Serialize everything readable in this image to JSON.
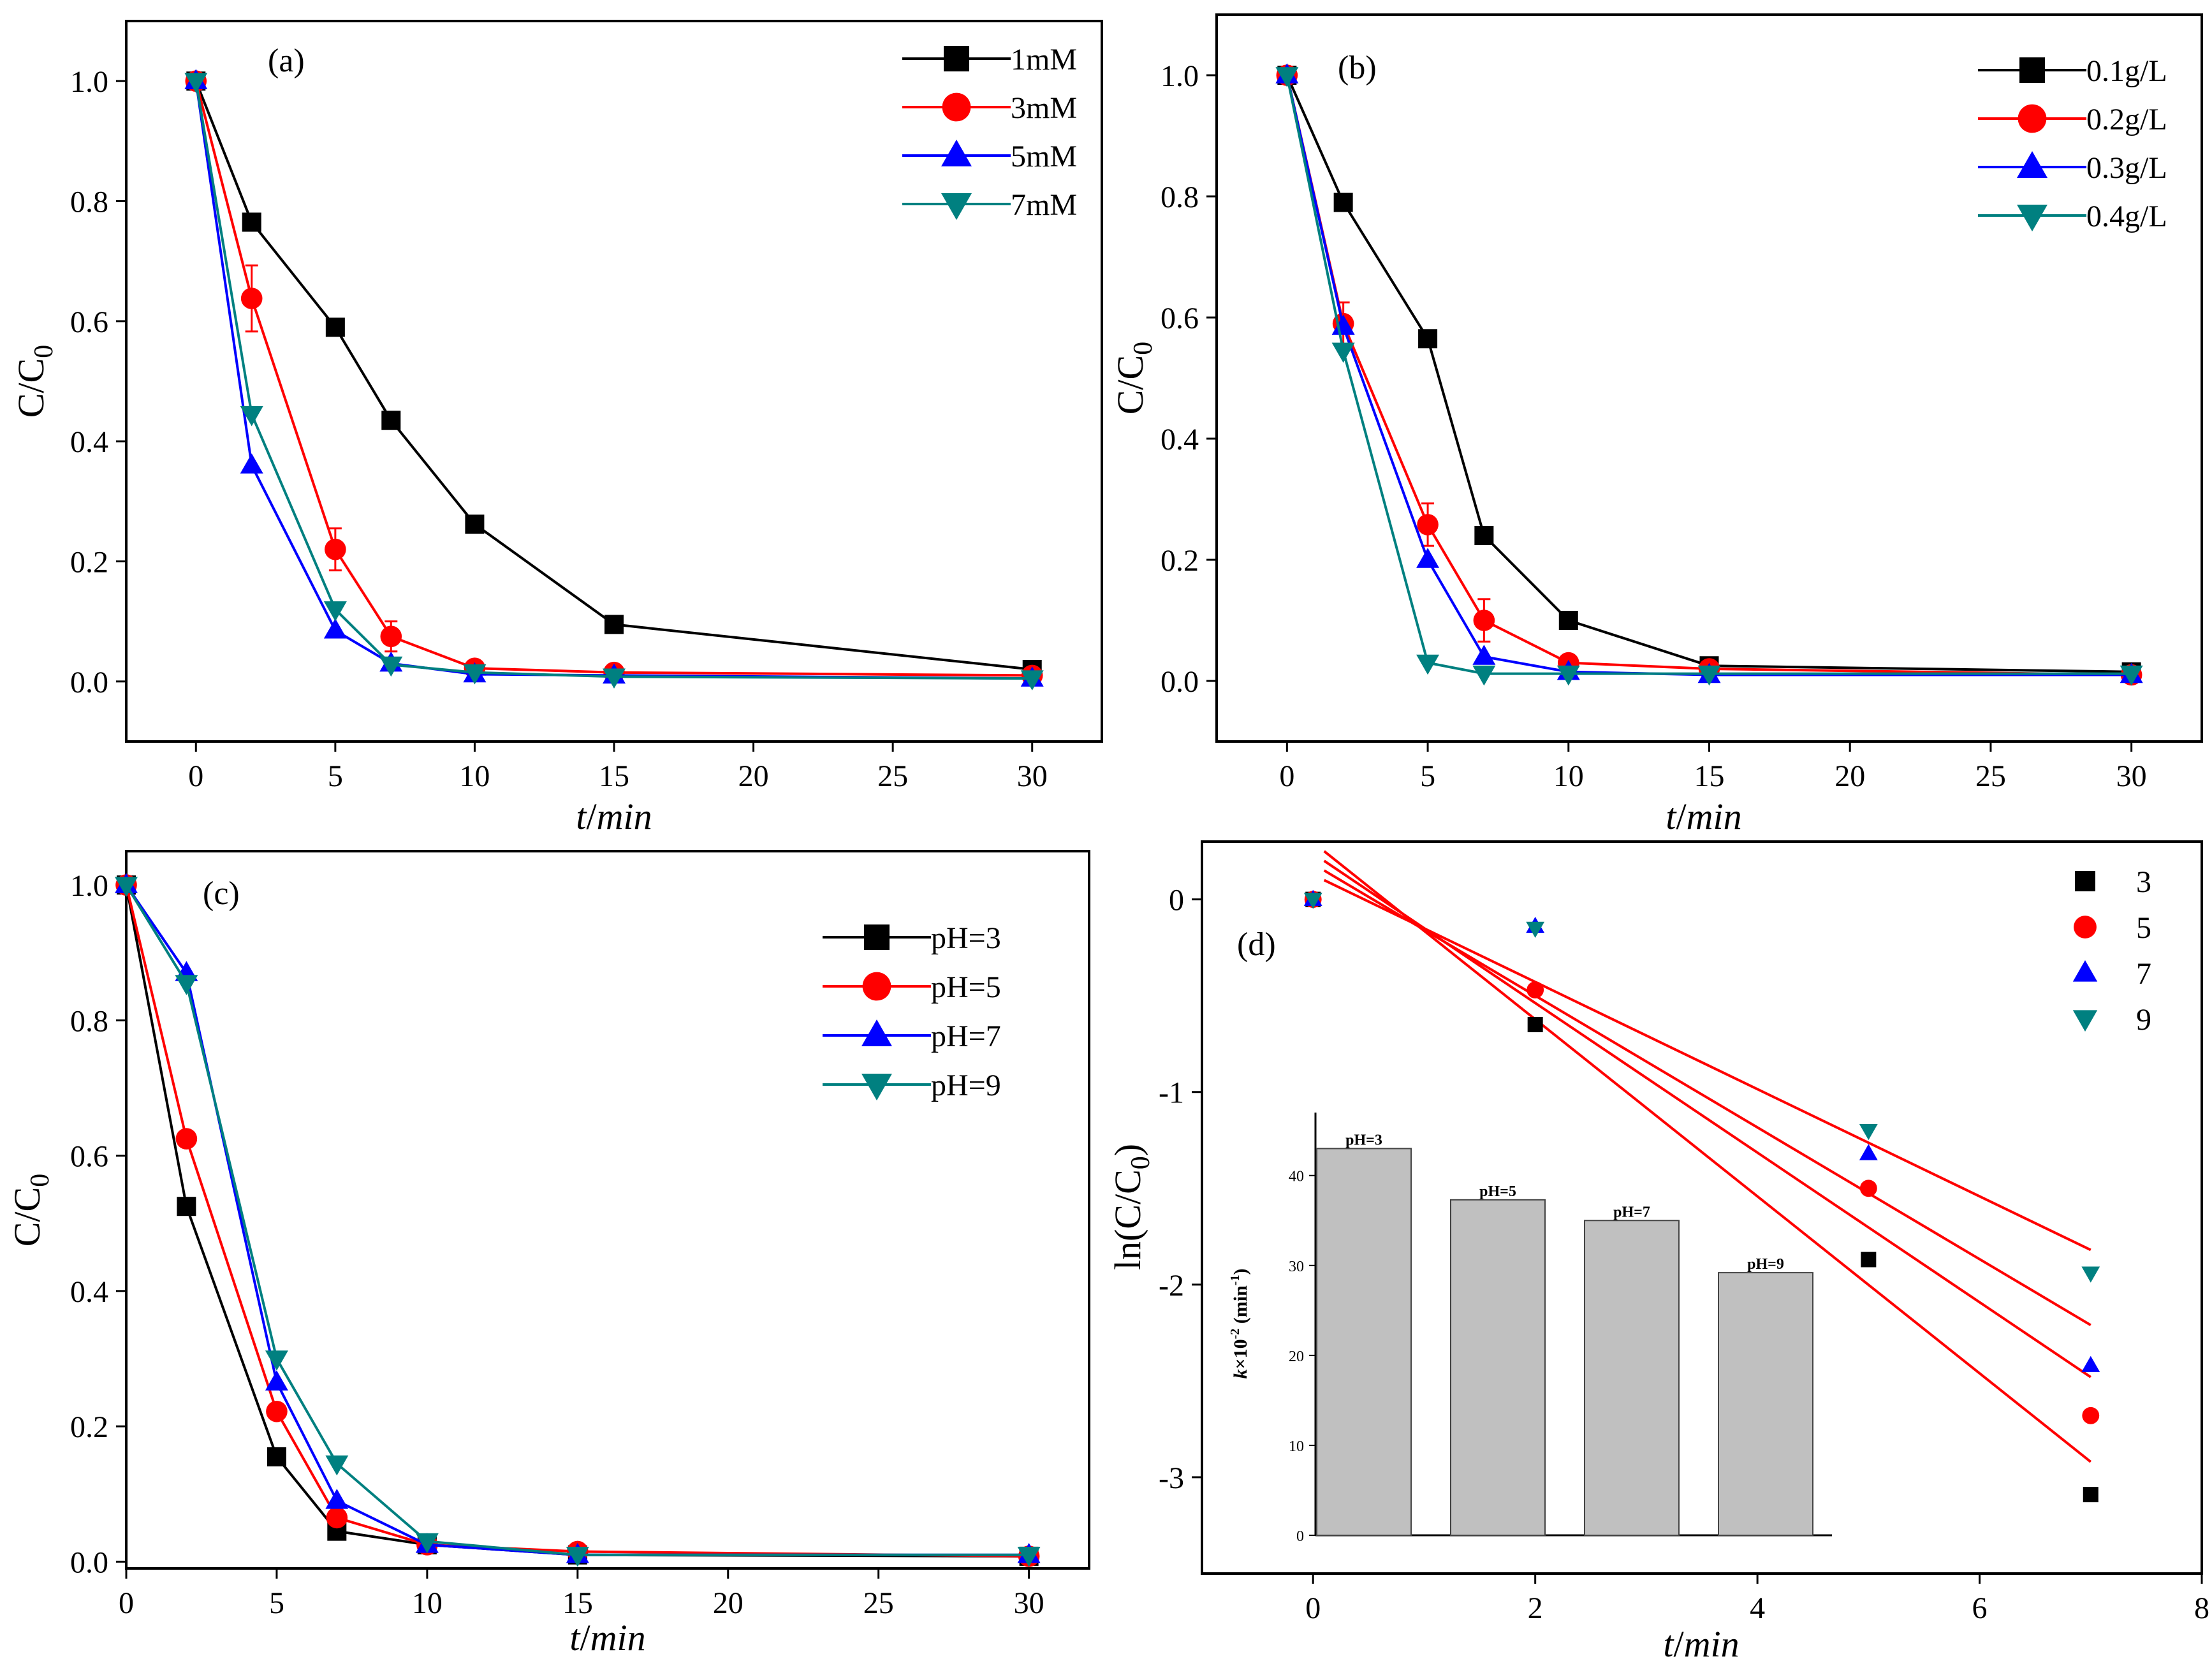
{
  "colors": {
    "black": "#000000",
    "red": "#ff0000",
    "blue": "#0000ff",
    "teal": "#008080",
    "bar": "#c0c0c0"
  },
  "chart_data": [
    {
      "panel": "(a)",
      "type": "line",
      "xlabel_t": "t",
      "xlabel_sep": "/",
      "xlabel_min": "min",
      "ylabel_base": "C/C",
      "ylabel_sub": "0",
      "xlim": [
        -2.5,
        32.5
      ],
      "ylim": [
        -0.1,
        1.1
      ],
      "xticks": [
        0,
        5,
        10,
        15,
        20,
        25,
        30
      ],
      "xtick_labels": [
        "0",
        "5",
        "10",
        "15",
        "20",
        "25",
        "30"
      ],
      "yticks": [
        0.0,
        0.2,
        0.4,
        0.6,
        0.8,
        1.0
      ],
      "ytick_labels": [
        "0.0",
        "0.2",
        "0.4",
        "0.6",
        "0.8",
        "1.0"
      ],
      "x": [
        0,
        2,
        5,
        7,
        10,
        15,
        30
      ],
      "series": [
        {
          "name": "1mM",
          "color": "#000000",
          "marker": "square",
          "values": [
            1.0,
            0.765,
            0.59,
            0.435,
            0.262,
            0.095,
            0.02
          ]
        },
        {
          "name": "3mM",
          "color": "#ff0000",
          "marker": "circle",
          "values": [
            1.0,
            0.638,
            0.22,
            0.075,
            0.022,
            0.015,
            0.01
          ],
          "errors": [
            0,
            0.055,
            0.035,
            0.025,
            0,
            0,
            0
          ]
        },
        {
          "name": "5mM",
          "color": "#0000ff",
          "marker": "triangle-up",
          "values": [
            1.0,
            0.36,
            0.085,
            0.03,
            0.012,
            0.01,
            0.005
          ]
        },
        {
          "name": "7mM",
          "color": "#008080",
          "marker": "triangle-down",
          "values": [
            1.0,
            0.445,
            0.12,
            0.028,
            0.015,
            0.008,
            0.005
          ]
        }
      ]
    },
    {
      "panel": "(b)",
      "type": "line",
      "xlabel_t": "t",
      "xlabel_sep": "/",
      "xlabel_min": "min",
      "ylabel_base": "C/C",
      "ylabel_sub": "0",
      "xlim": [
        -2.5,
        32.5
      ],
      "ylim": [
        -0.1,
        1.1
      ],
      "xticks": [
        0,
        5,
        10,
        15,
        20,
        25,
        30
      ],
      "xtick_labels": [
        "0",
        "5",
        "10",
        "15",
        "20",
        "25",
        "30"
      ],
      "yticks": [
        0.0,
        0.2,
        0.4,
        0.6,
        0.8,
        1.0
      ],
      "ytick_labels": [
        "0.0",
        "0.2",
        "0.4",
        "0.6",
        "0.8",
        "1.0"
      ],
      "x": [
        0,
        2,
        5,
        7,
        10,
        15,
        30
      ],
      "series": [
        {
          "name": "0.1g/L",
          "color": "#000000",
          "marker": "square",
          "values": [
            1.0,
            0.79,
            0.565,
            0.24,
            0.1,
            0.025,
            0.015
          ]
        },
        {
          "name": "0.2g/L",
          "color": "#ff0000",
          "marker": "circle",
          "values": [
            1.0,
            0.59,
            0.258,
            0.1,
            0.03,
            0.02,
            0.01
          ],
          "errors": [
            0,
            0.035,
            0.035,
            0.035,
            0,
            0,
            0
          ]
        },
        {
          "name": "0.3g/L",
          "color": "#0000ff",
          "marker": "triangle-up",
          "values": [
            1.0,
            0.585,
            0.2,
            0.04,
            0.015,
            0.01,
            0.01
          ]
        },
        {
          "name": "0.4g/L",
          "color": "#008080",
          "marker": "triangle-down",
          "values": [
            1.0,
            0.545,
            0.03,
            0.012,
            0.012,
            0.012,
            0.012
          ]
        }
      ]
    },
    {
      "panel": "(c)",
      "type": "line",
      "xlabel_t": "t",
      "xlabel_sep": "/",
      "xlabel_min": "min",
      "ylabel_base": "C/C",
      "ylabel_sub": "0",
      "xlim": [
        0,
        32
      ],
      "ylim": [
        -0.01,
        1.05
      ],
      "xticks": [
        0,
        5,
        10,
        15,
        20,
        25,
        30
      ],
      "xtick_labels": [
        "0",
        "5",
        "10",
        "15",
        "20",
        "25",
        "30"
      ],
      "yticks": [
        0.0,
        0.2,
        0.4,
        0.6,
        0.8,
        1.0
      ],
      "ytick_labels": [
        "0.0",
        "0.2",
        "0.4",
        "0.6",
        "0.8",
        "1.0"
      ],
      "x": [
        0,
        2,
        5,
        7,
        10,
        15,
        30
      ],
      "series": [
        {
          "name": "pH=3",
          "color": "#000000",
          "marker": "square",
          "values": [
            1.0,
            0.525,
            0.155,
            0.045,
            0.025,
            0.01,
            0.008
          ]
        },
        {
          "name": "pH=5",
          "color": "#ff0000",
          "marker": "circle",
          "values": [
            1.0,
            0.625,
            0.222,
            0.065,
            0.025,
            0.015,
            0.008
          ]
        },
        {
          "name": "pH=7",
          "color": "#0000ff",
          "marker": "triangle-up",
          "values": [
            1.0,
            0.87,
            0.265,
            0.09,
            0.025,
            0.01,
            0.01
          ]
        },
        {
          "name": "pH=9",
          "color": "#008080",
          "marker": "triangle-down",
          "values": [
            1.0,
            0.855,
            0.3,
            0.145,
            0.03,
            0.01,
            0.01
          ]
        }
      ]
    },
    {
      "panel": "(d)",
      "type": "scatter",
      "xlabel_t": "t",
      "xlabel_sep": "/",
      "xlabel_min": "min",
      "ylabel_pre": "ln(C/C",
      "ylabel_sub": "0",
      "ylabel_post": ")",
      "xlim": [
        -1,
        8
      ],
      "ylim": [
        -3.5,
        0.3
      ],
      "xticks": [
        0,
        2,
        4,
        6,
        8
      ],
      "xtick_labels": [
        "0",
        "2",
        "4",
        "6",
        "8"
      ],
      "yticks": [
        0,
        -1,
        -2,
        -3
      ],
      "ytick_labels": [
        "0",
        "-1",
        "-2",
        "-3"
      ],
      "x": [
        0,
        2,
        5,
        7
      ],
      "series": [
        {
          "name": "3",
          "color": "#000000",
          "marker": "square",
          "values": [
            0,
            -0.65,
            -1.87,
            -3.09
          ]
        },
        {
          "name": "5",
          "color": "#ff0000",
          "marker": "circle",
          "values": [
            0,
            -0.47,
            -1.5,
            -2.68
          ]
        },
        {
          "name": "7",
          "color": "#0000ff",
          "marker": "triangle-up",
          "values": [
            0,
            -0.14,
            -1.32,
            -2.42
          ]
        },
        {
          "name": "9",
          "color": "#008080",
          "marker": "triangle-down",
          "values": [
            0,
            -0.15,
            -1.2,
            -1.94
          ]
        }
      ],
      "fit_lines": [
        {
          "color": "#ff0000",
          "x": [
            0.1,
            7
          ],
          "y": [
            0.25,
            -2.92
          ]
        },
        {
          "color": "#ff0000",
          "x": [
            0.1,
            7
          ],
          "y": [
            0.2,
            -2.48
          ]
        },
        {
          "color": "#ff0000",
          "x": [
            0.1,
            7
          ],
          "y": [
            0.15,
            -2.21
          ]
        },
        {
          "color": "#ff0000",
          "x": [
            0.1,
            7
          ],
          "y": [
            0.1,
            -1.82
          ]
        }
      ],
      "inset": {
        "type": "bar",
        "ylabel_k": "k",
        "ylabel_times": "×10",
        "ylabel_exp": "-2",
        "ylabel_unit": " (min",
        "ylabel_unit_exp": "-1",
        "ylabel_close": ")",
        "categories": [
          "pH=3",
          "pH=5",
          "pH=7",
          "pH=9"
        ],
        "values": [
          43,
          37.3,
          35,
          29.2
        ],
        "ylim": [
          0,
          47
        ],
        "yticks": [
          0,
          10,
          20,
          30,
          40
        ],
        "ytick_labels": [
          "0",
          "10",
          "20",
          "30",
          "40"
        ]
      }
    }
  ]
}
